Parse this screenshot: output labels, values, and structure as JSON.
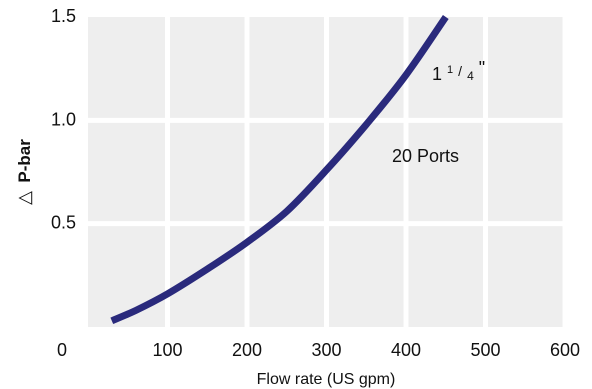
{
  "chart_data": {
    "type": "line",
    "xlabel": "Flow rate (US gpm)",
    "ylabel": "P-bar",
    "ylabel_symbol": "△",
    "xlim": [
      0,
      600
    ],
    "ylim": [
      0,
      1.5
    ],
    "x_ticks": [
      0,
      100,
      200,
      300,
      400,
      500,
      600
    ],
    "x_tick_labels": [
      "0",
      "100",
      "200",
      "300",
      "400",
      "500",
      "600"
    ],
    "y_ticks": [
      0.5,
      1.0,
      1.5
    ],
    "y_tick_labels": [
      "0.5",
      "1.0",
      "1.5"
    ],
    "grid": true,
    "background_color": "#eeeeee",
    "grid_color": "#ffffff",
    "series": [
      {
        "color": "#2a2a7c",
        "x": [
          30,
          60,
          100,
          150,
          200,
          250,
          300,
          350,
          400,
          450
        ],
        "y": [
          0.03,
          0.08,
          0.16,
          0.28,
          0.41,
          0.56,
          0.76,
          0.98,
          1.22,
          1.5
        ]
      }
    ],
    "annotations": {
      "size_main": "1",
      "size_num": "1",
      "size_den": "4",
      "size_suffix": "\"",
      "ports": "20 Ports"
    }
  }
}
